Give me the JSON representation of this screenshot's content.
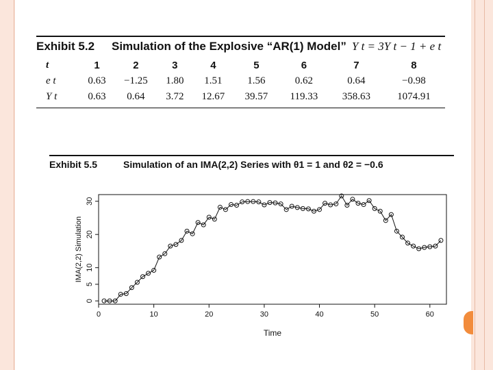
{
  "exhibit1": {
    "number": "Exhibit 5.2",
    "title": "Simulation of the Explosive “AR(1) Model”",
    "equation": "Y t  =  3Y t − 1 + e t",
    "table": {
      "header_label": "t",
      "columns": [
        "1",
        "2",
        "3",
        "4",
        "5",
        "6",
        "7",
        "8"
      ],
      "rows": [
        {
          "label": "e t",
          "values": [
            "0.63",
            "−1.25",
            "1.80",
            "1.51",
            "1.56",
            "0.62",
            "0.64",
            "−0.98"
          ]
        },
        {
          "label": "Y t",
          "values": [
            "0.63",
            "0.64",
            "3.72",
            "12.67",
            "39.57",
            "119.33",
            "358.63",
            "1074.91"
          ]
        }
      ]
    }
  },
  "exhibit2": {
    "number": "Exhibit 5.5",
    "title": "Simulation of an IMA(2,2) Series with θ1 = 1 and θ2 = −0.6"
  },
  "chart_data": {
    "type": "line",
    "xlabel": "Time",
    "ylabel": "IMA(2,2) Simulation",
    "xlim": [
      0,
      63
    ],
    "ylim": [
      -1,
      32
    ],
    "x_ticks": [
      0,
      10,
      20,
      30,
      40,
      50,
      60
    ],
    "y_ticks": [
      0,
      5,
      10,
      20,
      30
    ],
    "markers": "open-circle",
    "x": [
      1,
      2,
      3,
      4,
      5,
      6,
      7,
      8,
      9,
      10,
      11,
      12,
      13,
      14,
      15,
      16,
      17,
      18,
      19,
      20,
      21,
      22,
      23,
      24,
      25,
      26,
      27,
      28,
      29,
      30,
      31,
      32,
      33,
      34,
      35,
      36,
      37,
      38,
      39,
      40,
      41,
      42,
      43,
      44,
      45,
      46,
      47,
      48,
      49,
      50,
      51,
      52,
      53,
      54,
      55,
      56,
      57,
      58,
      59,
      60,
      61,
      62
    ],
    "values": [
      0.0,
      0.0,
      0.0,
      2.0,
      2.2,
      4.0,
      5.6,
      7.3,
      8.3,
      9.2,
      13.2,
      14.2,
      16.5,
      17.0,
      18.2,
      21.0,
      20.2,
      23.6,
      22.9,
      25.2,
      24.6,
      28.2,
      27.5,
      29.0,
      28.8,
      29.8,
      29.9,
      29.9,
      29.8,
      28.9,
      29.6,
      29.5,
      29.2,
      27.5,
      28.5,
      28.1,
      27.8,
      27.7,
      27.0,
      27.5,
      29.4,
      28.9,
      29.2,
      31.6,
      28.8,
      30.6,
      29.4,
      29.0,
      30.2,
      27.8,
      27.0,
      24.2,
      26.0,
      21.0,
      19.2,
      17.4,
      16.5,
      15.7,
      16.1,
      16.3,
      16.5,
      18.2
    ]
  }
}
